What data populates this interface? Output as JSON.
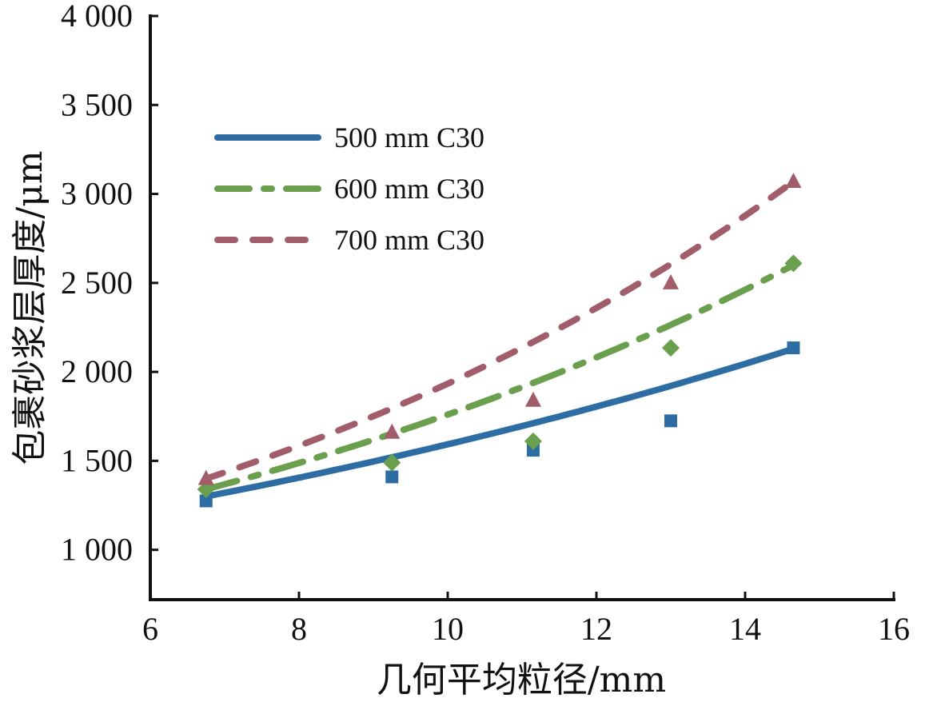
{
  "chart_data": {
    "type": "line",
    "title": "",
    "xlabel": "几何平均粒径/mm",
    "ylabel": "包裹砂浆层厚度/μm",
    "xlim": [
      6,
      16
    ],
    "ylim": [
      720,
      4000
    ],
    "x_ticks": [
      6,
      8,
      10,
      12,
      14,
      16
    ],
    "x_tick_labels": [
      "6",
      "8",
      "10",
      "12",
      "14",
      "16"
    ],
    "y_ticks": [
      1000,
      1500,
      2000,
      2500,
      3000,
      3500,
      4000
    ],
    "y_tick_labels": [
      "1 000",
      "1 500",
      "2 000",
      "2 500",
      "3 000",
      "3 500",
      "4 000"
    ],
    "grid": false,
    "legend_position": "top-left",
    "series": [
      {
        "name": "500 mm C30",
        "color": "#2e6da4",
        "style": "solid",
        "marker": "square",
        "x": [
          6.75,
          9.25,
          11.15,
          13.0,
          14.65
        ],
        "y": [
          1275,
          1410,
          1560,
          1725,
          2135
        ],
        "fit": {
          "type": "exponential",
          "x_start": 6.75,
          "x_end": 14.65,
          "y_start": 1300,
          "y_end": 2130
        }
      },
      {
        "name": "600 mm C30",
        "color": "#6a9f4e",
        "style": "dash-dot",
        "marker": "diamond",
        "x": [
          6.75,
          9.25,
          11.15,
          13.0,
          14.65
        ],
        "y": [
          1340,
          1490,
          1610,
          2135,
          2610
        ],
        "fit": {
          "type": "exponential",
          "x_start": 6.75,
          "x_end": 14.65,
          "y_start": 1340,
          "y_end": 2600
        }
      },
      {
        "name": "700 mm C30",
        "color": "#a25d6a",
        "style": "dashed",
        "marker": "triangle",
        "x": [
          6.75,
          9.25,
          11.15,
          13.0,
          14.65
        ],
        "y": [
          1400,
          1660,
          1840,
          2500,
          3070
        ],
        "fit": {
          "type": "exponential",
          "x_start": 6.75,
          "x_end": 14.65,
          "y_start": 1400,
          "y_end": 3070
        }
      }
    ]
  }
}
